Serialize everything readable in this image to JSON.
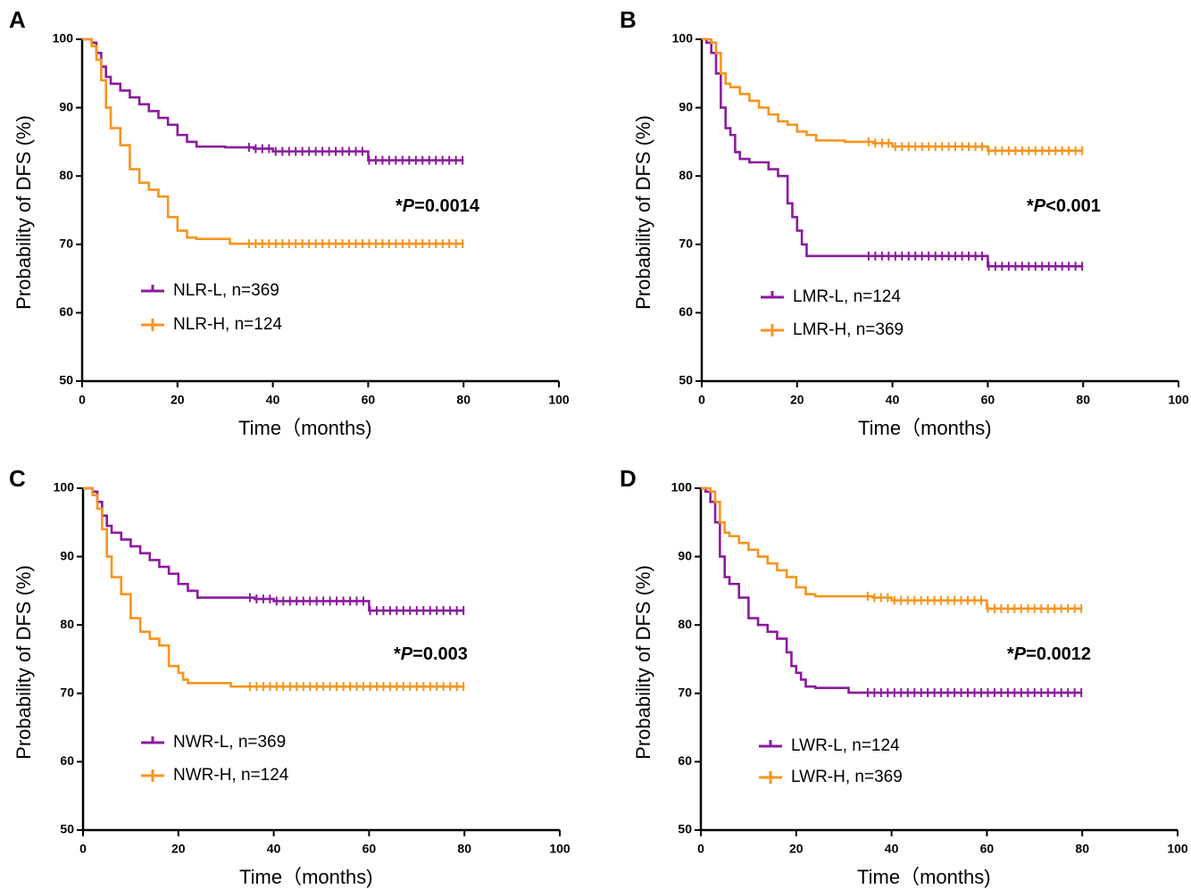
{
  "figure": {
    "colors": {
      "low": "#8B1A9E",
      "high": "#F7941D",
      "axis": "#000000"
    }
  },
  "chart_data": [
    {
      "panel": "A",
      "type": "line",
      "xlabel": "Time（months)",
      "ylabel": "Probability of  DFS (%)",
      "xlim": [
        0,
        100
      ],
      "ylim": [
        50,
        100
      ],
      "xticks": [
        "0",
        "20",
        "40",
        "60",
        "80",
        "100"
      ],
      "yticks": [
        "50",
        "60",
        "70",
        "80",
        "90",
        "100"
      ],
      "pvalue": {
        "prefix": "*",
        "p": "P",
        "rest": "=0.0014"
      },
      "legend_position": "lower-left",
      "series": [
        {
          "name": "NLR-L, n=369",
          "color": "#8B1A9E",
          "x": [
            0,
            2,
            3,
            4,
            5,
            6,
            8,
            10,
            12,
            14,
            16,
            18,
            20,
            22,
            24,
            30,
            36,
            40,
            50,
            58,
            60,
            80
          ],
          "y": [
            100,
            99.5,
            98,
            96,
            94.5,
            93.5,
            92.5,
            91.5,
            90.5,
            89.5,
            88.5,
            87.5,
            86,
            85,
            84.3,
            84.2,
            84,
            83.6,
            83.6,
            83.6,
            82.3,
            82.3
          ],
          "censor_from": 35
        },
        {
          "name": "NLR-H, n=124",
          "color": "#F7941D",
          "x": [
            0,
            2,
            3,
            4,
            5,
            6,
            8,
            10,
            12,
            14,
            16,
            18,
            20,
            22,
            24,
            30,
            31,
            80
          ],
          "y": [
            100,
            99,
            97,
            94,
            90,
            87,
            84.5,
            81,
            79,
            78,
            77,
            74,
            72,
            71,
            70.8,
            70.8,
            70.1,
            70.1
          ],
          "censor_from": 35
        }
      ]
    },
    {
      "panel": "B",
      "type": "line",
      "xlabel": "Time（months)",
      "ylabel": "Probability of DFS (%)",
      "xlim": [
        0,
        100
      ],
      "ylim": [
        50,
        100
      ],
      "xticks": [
        "0",
        "20",
        "40",
        "60",
        "80",
        "100"
      ],
      "yticks": [
        "50",
        "60",
        "70",
        "80",
        "90",
        "100"
      ],
      "pvalue": {
        "prefix": "*",
        "p": "P",
        "rest": "<0.001"
      },
      "legend_position": "lower-left",
      "series": [
        {
          "name": "LMR-L, n=124",
          "color": "#8B1A9E",
          "x": [
            0,
            1,
            2,
            3,
            4,
            5,
            6,
            7,
            8,
            10,
            12,
            14,
            16,
            18,
            19,
            20,
            21,
            22,
            30,
            40,
            58,
            60,
            80
          ],
          "y": [
            100,
            99.5,
            98,
            95,
            90,
            87,
            86,
            83.5,
            82.5,
            82,
            82,
            81,
            80,
            76,
            74,
            72,
            70,
            68.3,
            68.3,
            68.3,
            68.3,
            66.8,
            66.8
          ],
          "censor_from": 35
        },
        {
          "name": "LMR-H, n=369",
          "color": "#F7941D",
          "x": [
            0,
            2,
            3,
            4,
            5,
            6,
            8,
            10,
            12,
            14,
            16,
            18,
            20,
            22,
            24,
            30,
            36,
            40,
            50,
            58,
            60,
            80
          ],
          "y": [
            100,
            99.5,
            98,
            95,
            93.5,
            93,
            92,
            91,
            90,
            89,
            88,
            87.5,
            86.5,
            86,
            85.2,
            85,
            84.8,
            84.3,
            84.3,
            84.3,
            83.7,
            83.7
          ],
          "censor_from": 35
        }
      ]
    },
    {
      "panel": "C",
      "type": "line",
      "xlabel": "Time（months)",
      "ylabel": "Probability of DFS (%)",
      "xlim": [
        0,
        100
      ],
      "ylim": [
        50,
        100
      ],
      "xticks": [
        "0",
        "20",
        "40",
        "60",
        "80",
        "100"
      ],
      "yticks": [
        "50",
        "60",
        "70",
        "80",
        "90",
        "100"
      ],
      "pvalue": {
        "prefix": "*",
        "p": "P",
        "rest": "=0.003"
      },
      "legend_position": "lower-left",
      "series": [
        {
          "name": "NWR-L, n=369",
          "color": "#8B1A9E",
          "x": [
            0,
            2,
            3,
            4,
            5,
            6,
            8,
            10,
            12,
            14,
            16,
            18,
            20,
            22,
            24,
            30,
            36,
            40,
            50,
            58,
            60,
            80
          ],
          "y": [
            100,
            99.5,
            98,
            96,
            94.5,
            93.5,
            92.5,
            91.5,
            90.5,
            89.5,
            88.5,
            87.5,
            86,
            85,
            84,
            84,
            83.8,
            83.5,
            83.5,
            83.5,
            82.1,
            82.1
          ],
          "censor_from": 35
        },
        {
          "name": "NWR-H, n=124",
          "color": "#F7941D",
          "x": [
            0,
            2,
            3,
            4,
            5,
            6,
            8,
            10,
            12,
            14,
            16,
            18,
            20,
            21,
            22,
            30,
            31,
            80
          ],
          "y": [
            100,
            99,
            97,
            94,
            90,
            87,
            84.5,
            81,
            79,
            78,
            77,
            74,
            73,
            72,
            71.5,
            71.5,
            71,
            71
          ],
          "censor_from": 35
        }
      ]
    },
    {
      "panel": "D",
      "type": "line",
      "xlabel": "Time（months)",
      "ylabel": "Probability of DFS (%)",
      "xlim": [
        0,
        100
      ],
      "ylim": [
        50,
        100
      ],
      "xticks": [
        "0",
        "20",
        "40",
        "60",
        "80",
        "100"
      ],
      "yticks": [
        "50",
        "60",
        "70",
        "80",
        "90",
        "100"
      ],
      "pvalue": {
        "prefix": "*",
        "p": "P",
        "rest": "=0.0012"
      },
      "legend_position": "lower-left",
      "series": [
        {
          "name": "LWR-L, n=124",
          "color": "#8B1A9E",
          "x": [
            0,
            1,
            2,
            3,
            4,
            5,
            6,
            8,
            10,
            12,
            14,
            16,
            18,
            19,
            20,
            21,
            22,
            24,
            30,
            31,
            80
          ],
          "y": [
            100,
            99.5,
            98,
            95,
            90,
            87,
            86,
            84,
            81,
            80,
            79,
            78,
            76,
            74,
            73,
            72,
            71,
            70.8,
            70.8,
            70.1,
            70.1
          ],
          "censor_from": 35
        },
        {
          "name": "LWR-H, n=369",
          "color": "#F7941D",
          "x": [
            0,
            2,
            3,
            4,
            5,
            6,
            8,
            10,
            12,
            14,
            16,
            18,
            20,
            22,
            24,
            30,
            36,
            40,
            50,
            58,
            60,
            80
          ],
          "y": [
            100,
            99.5,
            98,
            95,
            93.5,
            93,
            92,
            91,
            90,
            89,
            88,
            87,
            85.5,
            84.5,
            84.2,
            84.2,
            84,
            83.6,
            83.6,
            83.6,
            82.4,
            82.4
          ],
          "censor_from": 35
        }
      ]
    }
  ]
}
